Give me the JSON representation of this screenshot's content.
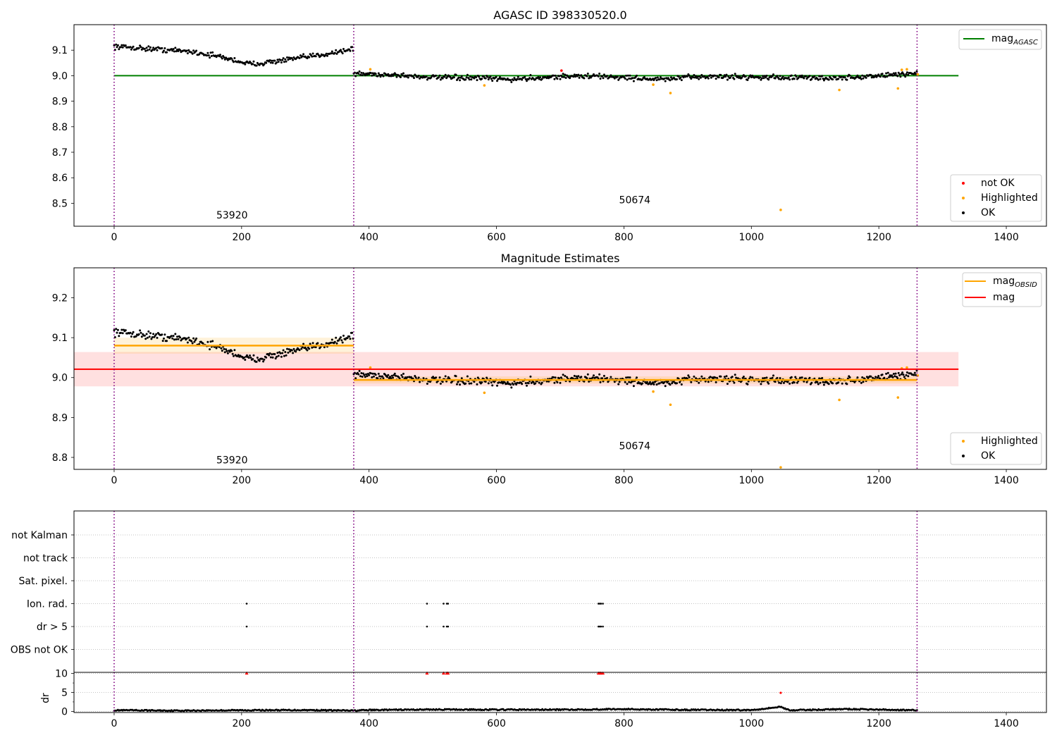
{
  "chart_data": [
    {
      "type": "scatter",
      "title": "AGASC ID 398330520.0",
      "xlim": [
        -63,
        1463
      ],
      "ylim": [
        8.41,
        9.2
      ],
      "x_ticks": [
        0,
        200,
        400,
        600,
        800,
        1000,
        1200,
        1400
      ],
      "y_ticks": [
        8.5,
        8.6,
        8.7,
        8.8,
        8.9,
        9.0,
        9.1
      ],
      "lines": [
        {
          "name": "mag$_{AGASC}$",
          "label_main": "mag",
          "label_sub": "AGASC",
          "color": "#008000",
          "y": 9.0,
          "x": [
            0,
            1325
          ]
        }
      ],
      "vlines": [
        0,
        376,
        1260
      ],
      "annotations": [
        {
          "text": "53920",
          "x": 185,
          "y": 8.44
        },
        {
          "text": "50674",
          "x": 817,
          "y": 8.5
        }
      ],
      "segments": [
        {
          "x": [
            0,
            376
          ],
          "curve": [
            [
              0,
              9.115
            ],
            [
              60,
              9.105
            ],
            [
              120,
              9.095
            ],
            [
              165,
              9.075
            ],
            [
              215,
              9.045
            ],
            [
              265,
              9.06
            ],
            [
              320,
              9.08
            ],
            [
              376,
              9.105
            ]
          ],
          "noise": 0.007
        },
        {
          "x": [
            376,
            1260
          ],
          "curve": [
            [
              376,
              9.008
            ],
            [
              440,
              9.003
            ],
            [
              500,
              8.993
            ],
            [
              580,
              8.99
            ],
            [
              620,
              8.985
            ],
            [
              700,
              8.997
            ],
            [
              760,
              8.998
            ],
            [
              860,
              8.985
            ],
            [
              920,
              8.997
            ],
            [
              1000,
              8.995
            ],
            [
              1080,
              8.992
            ],
            [
              1140,
              8.99
            ],
            [
              1200,
              9.0
            ],
            [
              1260,
              9.01
            ]
          ],
          "noise": 0.007
        }
      ],
      "highlighted": [
        [
          402,
          9.025
        ],
        [
          581,
          8.962
        ],
        [
          846,
          8.965
        ],
        [
          873,
          8.932
        ],
        [
          1046,
          8.474
        ],
        [
          1138,
          8.944
        ],
        [
          1230,
          8.95
        ],
        [
          1236,
          9.023
        ],
        [
          1244,
          9.025
        ],
        [
          1261,
          9.005
        ]
      ],
      "not_ok": [
        [
          702,
          9.02
        ]
      ],
      "legend_lines": [
        {
          "label_main": "mag",
          "label_sub": "AGASC",
          "color": "#008000"
        }
      ],
      "legend_points": [
        {
          "label": "not OK",
          "color": "#ff0000"
        },
        {
          "label": "Highlighted",
          "color": "#ffa500"
        },
        {
          "label": "OK",
          "color": "#000000"
        }
      ]
    },
    {
      "type": "scatter",
      "title": "Magnitude Estimates",
      "xlim": [
        -63,
        1463
      ],
      "ylim": [
        8.77,
        9.275
      ],
      "x_ticks": [
        0,
        200,
        400,
        600,
        800,
        1000,
        1200,
        1400
      ],
      "y_ticks": [
        8.8,
        8.9,
        9.0,
        9.1,
        9.2
      ],
      "lines": [
        {
          "label_main": "mag",
          "label_sub": "OBSID",
          "color": "#ffa500",
          "segments": [
            {
              "x": [
                0,
                376
              ],
              "y": 9.08,
              "band": [
                9.06,
                9.1
              ]
            },
            {
              "x": [
                376,
                1260
              ],
              "y": 8.994,
              "band": [
                8.985,
                9.003
              ]
            }
          ]
        },
        {
          "label_main": "mag",
          "color": "#ff0000",
          "x": [
            -63,
            1325
          ],
          "y": 9.021,
          "band": [
            8.978,
            9.064
          ]
        }
      ],
      "vlines": [
        0,
        376,
        1260
      ],
      "annotations": [
        {
          "text": "53920",
          "x": 185,
          "y": 8.785
        },
        {
          "text": "50674",
          "x": 817,
          "y": 8.82
        }
      ],
      "highlighted": [
        [
          402,
          9.025
        ],
        [
          581,
          8.962
        ],
        [
          846,
          8.965
        ],
        [
          873,
          8.932
        ],
        [
          1046,
          8.775
        ],
        [
          1138,
          8.944
        ],
        [
          1230,
          8.95
        ],
        [
          1236,
          9.023
        ],
        [
          1244,
          9.025
        ],
        [
          1261,
          9.005
        ]
      ],
      "legend_lines": [
        {
          "label_main": "mag",
          "label_sub": "OBSID",
          "color": "#ffa500"
        },
        {
          "label_main": "mag",
          "color": "#ff0000"
        }
      ],
      "legend_points": [
        {
          "label": "Highlighted",
          "color": "#ffa500"
        },
        {
          "label": "OK",
          "color": "#000000"
        }
      ]
    },
    {
      "type": "scatter",
      "xlim": [
        -63,
        1463
      ],
      "flags": [
        "not Kalman",
        "not track",
        "Sat. pixel.",
        "Ion. rad.",
        "dr > 5",
        "OBS not OK"
      ],
      "flag_points": {
        "Ion. rad.": [
          208,
          491,
          517,
          522,
          524,
          760,
          762,
          764,
          767
        ],
        "dr > 5": [
          208,
          491,
          517,
          522,
          524,
          760,
          762,
          764,
          767
        ]
      },
      "vlines": [
        0,
        376,
        1260
      ]
    },
    {
      "type": "scatter",
      "ylabel": "dr",
      "xlim": [
        -63,
        1463
      ],
      "ylim": [
        -0.3,
        10.3
      ],
      "x_ticks": [
        0,
        200,
        400,
        600,
        800,
        1000,
        1200,
        1400
      ],
      "y_ticks": [
        0,
        5,
        10
      ],
      "dr_curve": [
        [
          0,
          0.3
        ],
        [
          100,
          0.2
        ],
        [
          200,
          0.3
        ],
        [
          300,
          0.35
        ],
        [
          376,
          0.2
        ],
        [
          400,
          0.35
        ],
        [
          500,
          0.5
        ],
        [
          600,
          0.45
        ],
        [
          700,
          0.45
        ],
        [
          800,
          0.6
        ],
        [
          900,
          0.4
        ],
        [
          1000,
          0.35
        ],
        [
          1046,
          1.2
        ],
        [
          1060,
          0.3
        ],
        [
          1150,
          0.6
        ],
        [
          1260,
          0.3
        ]
      ],
      "dr_high": [
        208,
        491,
        517,
        522,
        524,
        760,
        762,
        764,
        767
      ],
      "dr_mid": [
        [
          1046,
          4.9
        ]
      ],
      "vlines": [
        0,
        376,
        1260
      ]
    }
  ]
}
